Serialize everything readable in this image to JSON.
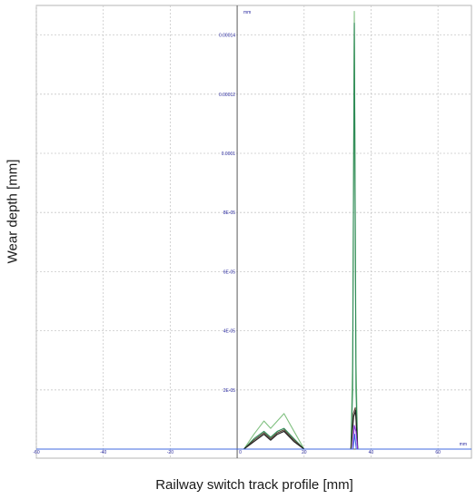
{
  "chart_data": {
    "type": "line",
    "xlabel": "Railway switch track profile [mm]",
    "ylabel": "Wear depth [mm]",
    "x_unit": "mm",
    "y_unit": "mm",
    "xlim": [
      -60,
      70
    ],
    "ylim": [
      0,
      0.00015
    ],
    "x_ticks": [
      {
        "value": -60,
        "label": "-60"
      },
      {
        "value": -40,
        "label": "-40"
      },
      {
        "value": -20,
        "label": "-20"
      },
      {
        "value": 0,
        "label": "0"
      },
      {
        "value": 20,
        "label": "20"
      },
      {
        "value": 40,
        "label": "40"
      },
      {
        "value": 60,
        "label": "60"
      }
    ],
    "y_ticks": [
      {
        "value": 2e-05,
        "label": "2E-05"
      },
      {
        "value": 4e-05,
        "label": "4E-05"
      },
      {
        "value": 6e-05,
        "label": "6E-05"
      },
      {
        "value": 8e-05,
        "label": "8E-05"
      },
      {
        "value": 0.0001,
        "label": "0.0001"
      },
      {
        "value": 0.00012,
        "label": "0.00012"
      },
      {
        "value": 0.00014,
        "label": "0.00014"
      }
    ],
    "grid": true,
    "series": [
      {
        "color": "#80c080",
        "x": [
          -60,
          0,
          2,
          5,
          8,
          10,
          12,
          14,
          17,
          20,
          33,
          34,
          34.5,
          35,
          35.5,
          36,
          36.5,
          37,
          70
        ],
        "y": [
          0,
          0,
          0,
          5e-06,
          9.5e-06,
          7e-06,
          9.5e-06,
          1.2e-05,
          6e-06,
          0,
          0,
          0,
          3e-05,
          0.000148,
          3e-05,
          0,
          0,
          0,
          0
        ]
      },
      {
        "color": "#2e8b57",
        "x": [
          -60,
          0,
          2,
          5,
          8,
          10,
          12,
          14,
          17,
          20,
          33,
          34,
          34.5,
          35,
          35.5,
          36,
          70
        ],
        "y": [
          0,
          0,
          0,
          3.5e-06,
          6e-06,
          4e-06,
          6e-06,
          7e-06,
          3.5e-06,
          0,
          0,
          0,
          2e-05,
          0.000144,
          2e-05,
          0,
          0
        ]
      },
      {
        "color": "#5a4636",
        "x": [
          -60,
          0,
          2,
          5,
          8,
          10,
          12,
          14,
          17,
          20,
          34,
          34.7,
          35.3,
          36,
          70
        ],
        "y": [
          0,
          0,
          0,
          3e-06,
          5.5e-06,
          3.5e-06,
          5.5e-06,
          6.5e-06,
          3e-06,
          0,
          0,
          1.2e-05,
          1.4e-05,
          0,
          0
        ]
      },
      {
        "color": "#1e1e1e",
        "x": [
          -60,
          0,
          2,
          5,
          8,
          10,
          12,
          14,
          17,
          20,
          34,
          34.8,
          35.4,
          36,
          70
        ],
        "y": [
          0,
          0,
          0,
          2.5e-06,
          5e-06,
          3e-06,
          5e-06,
          6e-06,
          2.5e-06,
          0,
          0,
          1.1e-05,
          1.3e-05,
          0,
          0
        ]
      },
      {
        "color": "#8a2be2",
        "x": [
          -60,
          34.5,
          35,
          35.5,
          36,
          70
        ],
        "y": [
          0,
          0,
          8e-06,
          6e-06,
          0,
          0
        ]
      },
      {
        "color": "#4169e1",
        "x": [
          -60,
          34.6,
          35.1,
          35.6,
          70
        ],
        "y": [
          0,
          0,
          5e-06,
          0,
          0
        ]
      }
    ]
  }
}
